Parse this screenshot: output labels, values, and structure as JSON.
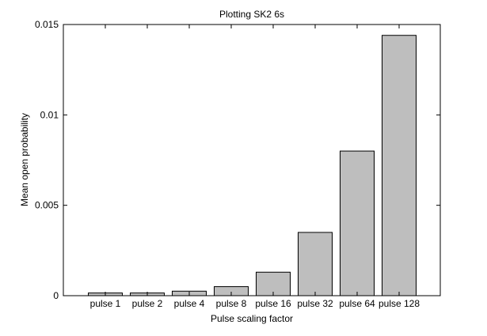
{
  "chart_data": {
    "type": "bar",
    "title": "Plotting SK2 6s",
    "xlabel": "Pulse scaling factor",
    "ylabel": "Mean open probability",
    "categories": [
      "pulse 1",
      "pulse 2",
      "pulse 4",
      "pulse 8",
      "pulse 16",
      "pulse 32",
      "pulse 64",
      "pulse 128"
    ],
    "values": [
      0.00015,
      0.00015,
      0.00025,
      0.0005,
      0.0013,
      0.0035,
      0.008,
      0.0144
    ],
    "ylim": [
      0,
      0.015
    ],
    "yticks": [
      0,
      0.005,
      0.01,
      0.015
    ],
    "ytick_labels": [
      "0",
      "0.005",
      "0.01",
      "0.015"
    ],
    "grid": false,
    "colors": {
      "bar_fill": "#bebebe",
      "bar_stroke": "#000000"
    }
  }
}
